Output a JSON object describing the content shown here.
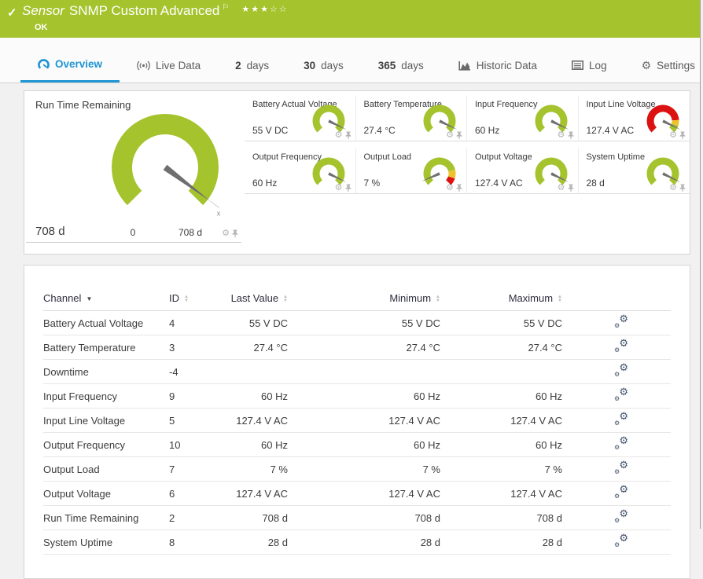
{
  "colors": {
    "green": "#a5c32d",
    "red": "#dc1212",
    "yellow": "#eec22e",
    "blue": "#1e95d4",
    "needle": "#6f6f6f"
  },
  "header": {
    "title_prefix": "Sensor",
    "title": "SNMP Custom Advanced",
    "status": "OK",
    "rating": {
      "filled": 3,
      "total": 5
    }
  },
  "tabs": {
    "items": [
      {
        "id": "overview",
        "icon": "gauge-icon",
        "label": "Overview",
        "active": true
      },
      {
        "id": "live-data",
        "icon": "live-data-icon",
        "label": "Live Data"
      },
      {
        "id": "2-days",
        "bold": "2",
        "label": "days"
      },
      {
        "id": "30-days",
        "bold": "30",
        "label": "days"
      },
      {
        "id": "365-days",
        "bold": "365",
        "label": "days"
      },
      {
        "id": "historic-data",
        "icon": "historic-data-icon",
        "label": "Historic Data"
      },
      {
        "id": "log",
        "icon": "log-icon",
        "label": "Log"
      },
      {
        "id": "settings",
        "icon": "settings-icon",
        "label": "Settings"
      }
    ]
  },
  "gauges": {
    "primary": {
      "title": "Run Time Remaining",
      "value": "708 d",
      "scale_min": "0",
      "scale_max": "708 d",
      "needle": 0.97,
      "tip_marker": "x",
      "segments": [
        {
          "color": "green",
          "from": 0,
          "to": 1
        }
      ]
    },
    "small": [
      {
        "title": "Battery Actual Voltage",
        "value": "55 V DC",
        "needle": 0.93,
        "segments": [
          {
            "color": "green",
            "from": 0,
            "to": 1
          }
        ]
      },
      {
        "title": "Battery Temperature",
        "value": "27.4 °C",
        "needle": 0.93,
        "segments": [
          {
            "color": "green",
            "from": 0,
            "to": 1
          }
        ]
      },
      {
        "title": "Input Frequency",
        "value": "60 Hz",
        "needle": 0.93,
        "segments": [
          {
            "color": "green",
            "from": 0,
            "to": 1
          }
        ]
      },
      {
        "title": "Input Line Voltage",
        "value": "127.4 V AC",
        "needle": 0.93,
        "segments": [
          {
            "color": "red",
            "from": 0,
            "to": 0.82
          },
          {
            "color": "yellow",
            "from": 0.82,
            "to": 0.9
          },
          {
            "color": "green",
            "from": 0.9,
            "to": 1
          }
        ]
      },
      {
        "title": "Output Frequency",
        "value": "60 Hz",
        "needle": 0.93,
        "segments": [
          {
            "color": "green",
            "from": 0,
            "to": 1
          }
        ]
      },
      {
        "title": "Output Load",
        "value": "7 %",
        "needle": 0.08,
        "segments": [
          {
            "color": "green",
            "from": 0,
            "to": 0.78
          },
          {
            "color": "yellow",
            "from": 0.78,
            "to": 0.9
          },
          {
            "color": "red",
            "from": 0.9,
            "to": 1
          }
        ]
      },
      {
        "title": "Output Voltage",
        "value": "127.4 V AC",
        "needle": 0.93,
        "segments": [
          {
            "color": "green",
            "from": 0,
            "to": 1
          }
        ]
      },
      {
        "title": "System Uptime",
        "value": "28 d",
        "needle": 0.93,
        "segments": [
          {
            "color": "green",
            "from": 0,
            "to": 1
          }
        ]
      }
    ]
  },
  "table": {
    "columns": [
      {
        "key": "channel",
        "label": "Channel",
        "sort": "desc",
        "cls": "c-ch"
      },
      {
        "key": "id",
        "label": "ID",
        "sort": "both",
        "cls": "c-id"
      },
      {
        "key": "last",
        "label": "Last Value",
        "sort": "both",
        "cls": "c-last"
      },
      {
        "key": "min",
        "label": "Minimum",
        "sort": "both",
        "cls": "c-min"
      },
      {
        "key": "max",
        "label": "Maximum",
        "sort": "both",
        "cls": "c-max"
      }
    ],
    "rows": [
      {
        "channel": "Battery Actual Voltage",
        "id": "4",
        "last": "55 V DC",
        "min": "55 V DC",
        "max": "55 V DC"
      },
      {
        "channel": "Battery Temperature",
        "id": "3",
        "last": "27.4 °C",
        "min": "27.4 °C",
        "max": "27.4 °C"
      },
      {
        "channel": "Downtime",
        "id": "-4",
        "last": "",
        "min": "",
        "max": ""
      },
      {
        "channel": "Input Frequency",
        "id": "9",
        "last": "60 Hz",
        "min": "60 Hz",
        "max": "60 Hz"
      },
      {
        "channel": "Input Line Voltage",
        "id": "5",
        "last": "127.4 V AC",
        "min": "127.4 V AC",
        "max": "127.4 V AC"
      },
      {
        "channel": "Output Frequency",
        "id": "10",
        "last": "60 Hz",
        "min": "60 Hz",
        "max": "60 Hz"
      },
      {
        "channel": "Output Load",
        "id": "7",
        "last": "7 %",
        "min": "7 %",
        "max": "7 %"
      },
      {
        "channel": "Output Voltage",
        "id": "6",
        "last": "127.4 V AC",
        "min": "127.4 V AC",
        "max": "127.4 V AC"
      },
      {
        "channel": "Run Time Remaining",
        "id": "2",
        "last": "708 d",
        "min": "708 d",
        "max": "708 d"
      },
      {
        "channel": "System Uptime",
        "id": "8",
        "last": "28 d",
        "min": "28 d",
        "max": "28 d"
      }
    ]
  }
}
